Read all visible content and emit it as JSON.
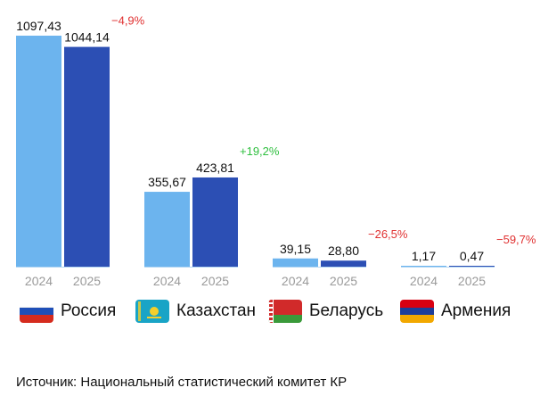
{
  "chart_data": {
    "type": "bar",
    "categories": [
      "Россия",
      "Казахстан",
      "Беларусь",
      "Армения"
    ],
    "series": [
      {
        "name": "2024",
        "color": "#6cb4ee",
        "labels": [
          "1097,43",
          "355,67",
          "39,15",
          "1,17"
        ],
        "values": [
          1097.43,
          355.67,
          39.15,
          1.17
        ]
      },
      {
        "name": "2025",
        "color": "#2c4fb4",
        "labels": [
          "1044,14",
          "423,81",
          "28,80",
          "0,47"
        ],
        "values": [
          1044.14,
          423.81,
          28.8,
          0.47
        ]
      }
    ],
    "changes": [
      {
        "text": "−4,9%",
        "color": "#e03131"
      },
      {
        "text": "+19,2%",
        "color": "#2fbf3f"
      },
      {
        "text": "−26,5%",
        "color": "#e03131"
      },
      {
        "text": "−59,7%",
        "color": "#e03131"
      }
    ],
    "ylim": [
      0,
      1097.43
    ],
    "grid": false,
    "legend": "none"
  },
  "countries": [
    {
      "name": "Россия",
      "flag": "russia-flag-icon"
    },
    {
      "name": "Казахстан",
      "flag": "kazakhstan-flag-icon"
    },
    {
      "name": "Беларусь",
      "flag": "belarus-flag-icon"
    },
    {
      "name": "Армения",
      "flag": "armenia-flag-icon"
    }
  ],
  "source": "Источник: Национальный статистический комитет КР"
}
